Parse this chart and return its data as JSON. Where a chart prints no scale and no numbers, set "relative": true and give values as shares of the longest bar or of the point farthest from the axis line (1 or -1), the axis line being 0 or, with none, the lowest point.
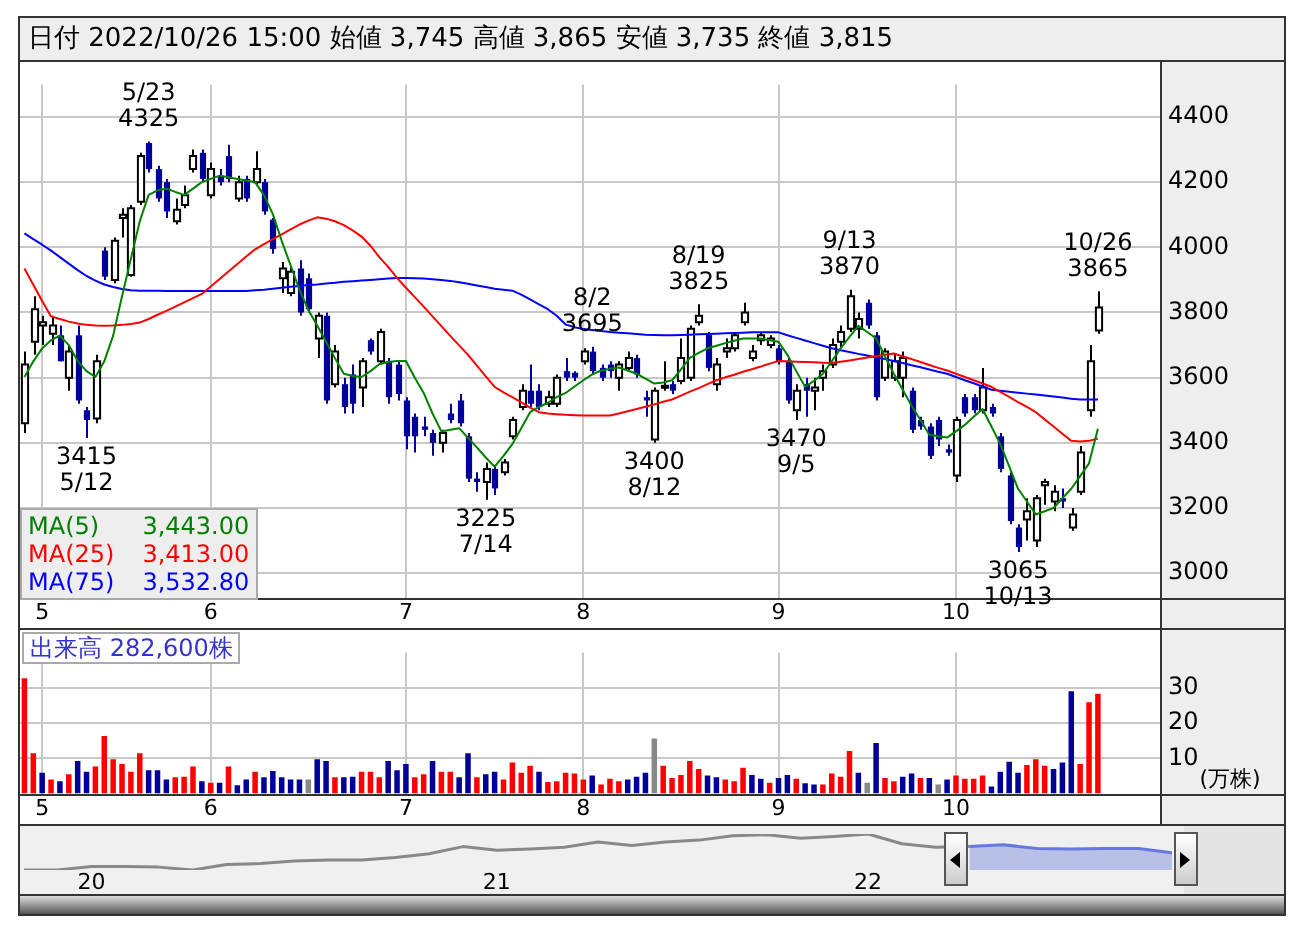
{
  "chart_data": [
    {
      "type": "candlestick",
      "title": "日付 2022/10/26 15:00 始値 3,745 高値 3,865 安値 3,735 終値 3,815",
      "categories": [
        null,
        null,
        "5",
        null,
        null,
        null,
        null,
        null,
        null,
        null,
        null,
        null,
        null,
        null,
        null,
        null,
        null,
        null,
        null,
        null,
        null,
        "6",
        null,
        null,
        null,
        null,
        null,
        null,
        null,
        null,
        null,
        null,
        null,
        null,
        null,
        null,
        null,
        null,
        null,
        null,
        null,
        null,
        null,
        "7",
        null,
        null,
        null,
        null,
        null,
        null,
        null,
        null,
        null,
        null,
        null,
        null,
        null,
        null,
        null,
        null,
        null,
        null,
        null,
        "8",
        null,
        null,
        null,
        null,
        null,
        null,
        null,
        null,
        null,
        null,
        null,
        null,
        null,
        null,
        null,
        null,
        null,
        null,
        null,
        null,
        null,
        "9",
        null,
        null,
        null,
        null,
        null,
        null,
        null,
        null,
        null,
        null,
        null,
        null,
        null,
        null,
        null,
        null,
        null,
        null,
        null,
        "10",
        null,
        null,
        null,
        null,
        null,
        null,
        null,
        null,
        null,
        null,
        null,
        null,
        null,
        null,
        null,
        null
      ],
      "ohlc": [
        [
          3460,
          3680,
          3430,
          3640
        ],
        [
          3710,
          3850,
          3670,
          3810
        ],
        [
          3760,
          3790,
          3700,
          3770
        ],
        [
          3735,
          3790,
          3700,
          3760
        ],
        [
          3730,
          3760,
          3650,
          3650
        ],
        [
          3600,
          3700,
          3560,
          3680
        ],
        [
          3730,
          3760,
          3520,
          3530
        ],
        [
          3500,
          3510,
          3415,
          3470
        ],
        [
          3475,
          3670,
          3460,
          3650
        ],
        [
          3990,
          4000,
          3900,
          3910
        ],
        [
          3900,
          4030,
          3890,
          4020
        ],
        [
          4090,
          4120,
          4030,
          4100
        ],
        [
          3915,
          4130,
          3910,
          4120
        ],
        [
          4140,
          4290,
          4130,
          4280
        ],
        [
          4320,
          4325,
          4230,
          4240
        ],
        [
          4240,
          4250,
          4140,
          4150
        ],
        [
          4200,
          4210,
          4090,
          4110
        ],
        [
          4080,
          4150,
          4070,
          4115
        ],
        [
          4130,
          4190,
          4120,
          4160
        ],
        [
          4240,
          4300,
          4230,
          4280
        ],
        [
          4290,
          4300,
          4200,
          4210
        ],
        [
          4160,
          4260,
          4150,
          4240
        ],
        [
          4220,
          4240,
          4190,
          4200
        ],
        [
          4280,
          4315,
          4200,
          4210
        ],
        [
          4150,
          4220,
          4140,
          4200
        ],
        [
          4210,
          4220,
          4140,
          4150
        ],
        [
          4200,
          4295,
          4190,
          4240
        ],
        [
          4200,
          4210,
          4100,
          4110
        ],
        [
          4085,
          4090,
          3980,
          3995
        ],
        [
          3905,
          3955,
          3860,
          3935
        ],
        [
          3860,
          3940,
          3850,
          3925
        ],
        [
          3935,
          3960,
          3790,
          3800
        ],
        [
          3905,
          3920,
          3800,
          3810
        ],
        [
          3720,
          3800,
          3660,
          3790
        ],
        [
          3790,
          3800,
          3520,
          3530
        ],
        [
          3580,
          3700,
          3570,
          3680
        ],
        [
          3580,
          3600,
          3490,
          3510
        ],
        [
          3610,
          3640,
          3490,
          3520
        ],
        [
          3570,
          3660,
          3510,
          3650
        ],
        [
          3715,
          3720,
          3670,
          3680
        ],
        [
          3650,
          3750,
          3640,
          3740
        ],
        [
          3650,
          3660,
          3520,
          3540
        ],
        [
          3640,
          3650,
          3530,
          3550
        ],
        [
          3530,
          3540,
          3380,
          3420
        ],
        [
          3480,
          3490,
          3370,
          3420
        ],
        [
          3450,
          3480,
          3420,
          3440
        ],
        [
          3430,
          3440,
          3360,
          3400
        ],
        [
          3400,
          3440,
          3370,
          3430
        ],
        [
          3490,
          3520,
          3460,
          3470
        ],
        [
          3530,
          3550,
          3450,
          3460
        ],
        [
          3420,
          3430,
          3280,
          3290
        ],
        [
          3290,
          3310,
          3250,
          3280
        ],
        [
          3280,
          3340,
          3225,
          3320
        ],
        [
          3320,
          3330,
          3240,
          3260
        ],
        [
          3310,
          3350,
          3300,
          3340
        ],
        [
          3420,
          3480,
          3410,
          3470
        ],
        [
          3510,
          3580,
          3500,
          3560
        ],
        [
          3560,
          3640,
          3510,
          3520
        ],
        [
          3560,
          3580,
          3500,
          3510
        ],
        [
          3520,
          3560,
          3510,
          3540
        ],
        [
          3520,
          3610,
          3510,
          3600
        ],
        [
          3620,
          3660,
          3590,
          3600
        ],
        [
          3615,
          3620,
          3590,
          3600
        ],
        [
          3650,
          3690,
          3640,
          3680
        ],
        [
          3680,
          3695,
          3610,
          3620
        ],
        [
          3630,
          3640,
          3590,
          3600
        ],
        [
          3640,
          3650,
          3600,
          3620
        ],
        [
          3600,
          3650,
          3560,
          3640
        ],
        [
          3630,
          3680,
          3620,
          3660
        ],
        [
          3660,
          3670,
          3600,
          3610
        ],
        [
          3540,
          3560,
          3480,
          3530
        ],
        [
          3410,
          3570,
          3400,
          3560
        ],
        [
          3570,
          3650,
          3560,
          3575
        ],
        [
          3580,
          3590,
          3550,
          3560
        ],
        [
          3590,
          3720,
          3580,
          3660
        ],
        [
          3600,
          3760,
          3590,
          3750
        ],
        [
          3770,
          3825,
          3760,
          3790
        ],
        [
          3735,
          3740,
          3620,
          3630
        ],
        [
          3580,
          3660,
          3560,
          3640
        ],
        [
          3680,
          3720,
          3660,
          3690
        ],
        [
          3690,
          3740,
          3680,
          3730
        ],
        [
          3770,
          3830,
          3760,
          3800
        ],
        [
          3660,
          3700,
          3650,
          3680
        ],
        [
          3715,
          3740,
          3700,
          3730
        ],
        [
          3700,
          3730,
          3690,
          3720
        ],
        [
          3690,
          3700,
          3640,
          3650
        ],
        [
          3650,
          3660,
          3520,
          3530
        ],
        [
          3500,
          3580,
          3470,
          3560
        ],
        [
          3580,
          3600,
          3480,
          3560
        ],
        [
          3560,
          3600,
          3500,
          3570
        ],
        [
          3600,
          3640,
          3560,
          3620
        ],
        [
          3640,
          3720,
          3630,
          3700
        ],
        [
          3710,
          3760,
          3690,
          3740
        ],
        [
          3750,
          3870,
          3740,
          3850
        ],
        [
          3750,
          3800,
          3720,
          3780
        ],
        [
          3830,
          3840,
          3750,
          3760
        ],
        [
          3730,
          3740,
          3530,
          3540
        ],
        [
          3600,
          3690,
          3590,
          3680
        ],
        [
          3600,
          3670,
          3590,
          3650
        ],
        [
          3600,
          3680,
          3540,
          3660
        ],
        [
          3560,
          3570,
          3430,
          3440
        ],
        [
          3470,
          3480,
          3440,
          3450
        ],
        [
          3450,
          3460,
          3350,
          3360
        ],
        [
          3470,
          3480,
          3390,
          3410
        ],
        [
          3380,
          3395,
          3360,
          3370
        ],
        [
          3300,
          3480,
          3280,
          3470
        ],
        [
          3540,
          3550,
          3480,
          3490
        ],
        [
          3540,
          3550,
          3490,
          3500
        ],
        [
          3500,
          3630,
          3490,
          3570
        ],
        [
          3510,
          3520,
          3480,
          3490
        ],
        [
          3420,
          3430,
          3310,
          3320
        ],
        [
          3300,
          3310,
          3150,
          3160
        ],
        [
          3140,
          3150,
          3065,
          3080
        ],
        [
          3165,
          3230,
          3100,
          3190
        ],
        [
          3100,
          3240,
          3080,
          3230
        ],
        [
          3270,
          3290,
          3210,
          3280
        ],
        [
          3220,
          3270,
          3190,
          3250
        ],
        [
          3230,
          3260,
          3200,
          3220
        ],
        [
          3140,
          3200,
          3130,
          3180
        ],
        [
          3250,
          3390,
          3240,
          3370
        ],
        [
          3500,
          3700,
          3480,
          3650
        ],
        [
          3745,
          3865,
          3735,
          3815
        ]
      ],
      "series": [
        {
          "name": "MA(5)",
          "type": "line",
          "color": "#008000",
          "values": [
            3602,
            3650,
            3690,
            3715,
            3729,
            3700,
            3651,
            3620,
            3602,
            3650,
            3729,
            3850,
            3965,
            4080,
            4161,
            4175,
            4180,
            4170,
            4161,
            4180,
            4200,
            4210,
            4220,
            4215,
            4210,
            4205,
            4200,
            4160,
            4102,
            4020,
            3945,
            3870,
            3808,
            3760,
            3710,
            3660,
            3612,
            3605,
            3602,
            3620,
            3641,
            3648,
            3651,
            3651,
            3600,
            3553,
            3490,
            3435,
            3440,
            3445,
            3415,
            3386,
            3355,
            3327,
            3360,
            3396,
            3445,
            3494,
            3510,
            3523,
            3540,
            3553,
            3573,
            3592,
            3610,
            3622,
            3627,
            3631,
            3622,
            3612,
            3597,
            3582,
            3585,
            3592,
            3625,
            3661,
            3676,
            3690,
            3698,
            3706,
            3713,
            3720,
            3720,
            3720,
            3715,
            3710,
            3670,
            3620,
            3572,
            3590,
            3612,
            3650,
            3690,
            3725,
            3759,
            3740,
            3720,
            3665,
            3612,
            3563,
            3514,
            3470,
            3425,
            3420,
            3416,
            3435,
            3455,
            3480,
            3504,
            3450,
            3396,
            3328,
            3259,
            3220,
            3180,
            3190,
            3200,
            3230,
            3259,
            3298,
            3337,
            3443
          ]
        },
        {
          "name": "MA(25)",
          "type": "line",
          "color": "#ff0000",
          "values": [
            3935,
            3885,
            3835,
            3788,
            3780,
            3772,
            3766,
            3762,
            3760,
            3759,
            3760,
            3762,
            3765,
            3769,
            3780,
            3793,
            3805,
            3818,
            3831,
            3844,
            3857,
            3880,
            3903,
            3926,
            3949,
            3972,
            3994,
            4010,
            4025,
            4040,
            4055,
            4070,
            4082,
            4092,
            4088,
            4080,
            4068,
            4052,
            4033,
            4005,
            3970,
            3940,
            3906,
            3876,
            3847,
            3818,
            3788,
            3758,
            3728,
            3699,
            3670,
            3637,
            3604,
            3572,
            3555,
            3540,
            3524,
            3508,
            3494,
            3490,
            3488,
            3486,
            3485,
            3484,
            3484,
            3484,
            3484,
            3490,
            3497,
            3504,
            3511,
            3518,
            3526,
            3533,
            3545,
            3557,
            3568,
            3580,
            3592,
            3601,
            3609,
            3618,
            3626,
            3634,
            3643,
            3651,
            3650,
            3649,
            3648,
            3647,
            3646,
            3645,
            3649,
            3653,
            3657,
            3662,
            3666,
            3670,
            3674,
            3665,
            3657,
            3648,
            3639,
            3630,
            3622,
            3612,
            3602,
            3592,
            3582,
            3572,
            3556,
            3541,
            3525,
            3510,
            3494,
            3472,
            3450,
            3428,
            3406,
            3404,
            3406,
            3413
          ]
        },
        {
          "name": "MA(75)",
          "type": "line",
          "color": "#0000ff",
          "values": [
            4043,
            4025,
            4008,
            3990,
            3970,
            3950,
            3930,
            3912,
            3898,
            3886,
            3878,
            3872,
            3868,
            3867,
            3867,
            3867,
            3866,
            3866,
            3866,
            3866,
            3866,
            3866,
            3866,
            3866,
            3866,
            3866,
            3868,
            3870,
            3873,
            3876,
            3879,
            3881,
            3884,
            3886,
            3889,
            3891,
            3894,
            3896,
            3898,
            3900,
            3902,
            3904,
            3906,
            3906,
            3905,
            3904,
            3902,
            3900,
            3897,
            3893,
            3888,
            3883,
            3878,
            3873,
            3870,
            3867,
            3855,
            3840,
            3825,
            3810,
            3790,
            3763,
            3755,
            3749,
            3746,
            3743,
            3740,
            3738,
            3736,
            3734,
            3732,
            3731,
            3730,
            3730,
            3731,
            3732,
            3733,
            3734,
            3735,
            3736,
            3737,
            3738,
            3739,
            3739,
            3739,
            3739,
            3730,
            3722,
            3714,
            3706,
            3698,
            3690,
            3684,
            3679,
            3673,
            3668,
            3662,
            3657,
            3651,
            3645,
            3638,
            3632,
            3625,
            3618,
            3612,
            3602,
            3592,
            3583,
            3573,
            3563,
            3560,
            3557,
            3554,
            3551,
            3548,
            3545,
            3542,
            3539,
            3535,
            3533,
            3533,
            3533
          ]
        }
      ],
      "annotations": [
        {
          "text": "5/23\n4325",
          "y": 4325
        },
        {
          "text": "3415\n5/12",
          "y": 3415
        },
        {
          "text": "3225\n7/14",
          "y": 3225
        },
        {
          "text": "8/2\n3695",
          "y": 3695
        },
        {
          "text": "3400\n8/12",
          "y": 3400
        },
        {
          "text": "8/19\n3825",
          "y": 3825
        },
        {
          "text": "3470\n9/5",
          "y": 3470
        },
        {
          "text": "9/13\n3870",
          "y": 3870
        },
        {
          "text": "3065\n10/13",
          "y": 3065
        },
        {
          "text": "10/26\n3865",
          "y": 3865
        },
        "3,443.00",
        "3,413.00",
        "3,532.80"
      ],
      "ylim": [
        2925,
        4500
      ],
      "yticks": [
        3000,
        3200,
        3400,
        3600,
        3800,
        4000,
        4200,
        4400
      ],
      "grid": true,
      "legend": "bottom left"
    },
    {
      "type": "bar",
      "title": "出来高 282,600株",
      "ylabel": "(万株)",
      "categories": [
        null,
        null,
        "5",
        null,
        null,
        null,
        null,
        null,
        null,
        null,
        null,
        null,
        null,
        null,
        null,
        null,
        null,
        null,
        null,
        null,
        null,
        "6",
        null,
        null,
        null,
        null,
        null,
        null,
        null,
        null,
        null,
        null,
        null,
        null,
        null,
        null,
        null,
        null,
        null,
        null,
        null,
        null,
        null,
        "7",
        null,
        null,
        null,
        null,
        null,
        null,
        null,
        null,
        null,
        null,
        null,
        null,
        null,
        null,
        null,
        null,
        null,
        null,
        null,
        "8",
        null,
        null,
        null,
        null,
        null,
        null,
        null,
        null,
        null,
        null,
        null,
        null,
        null,
        null,
        null,
        null,
        null,
        null,
        null,
        null,
        null,
        "9",
        null,
        null,
        null,
        null,
        null,
        null,
        null,
        null,
        null,
        null,
        null,
        null,
        null,
        null,
        null,
        null,
        null,
        null,
        null,
        "10",
        null,
        null,
        null,
        null,
        null,
        null,
        null,
        null,
        null,
        null,
        null,
        null,
        null,
        null,
        null,
        null
      ],
      "values": [
        32.7,
        11.4,
        5.9,
        4,
        3.5,
        5.5,
        9.2,
        6.2,
        7.7,
        16.3,
        9.7,
        8.4,
        6.2,
        11.4,
        6.6,
        6.6,
        4,
        4.6,
        4.8,
        7.7,
        3.5,
        3.1,
        3.1,
        7.7,
        2.4,
        4,
        6.2,
        4.6,
        6.4,
        4.6,
        4,
        4,
        4,
        9.7,
        9.2,
        4.6,
        4.6,
        4.8,
        6.2,
        6.2,
        4.6,
        9.2,
        6.6,
        8.4,
        4.6,
        5.5,
        9.2,
        6.2,
        6.2,
        4.6,
        11.4,
        4.6,
        5.5,
        6.2,
        4,
        8.8,
        5.9,
        7.9,
        6.2,
        3.3,
        3.5,
        5.9,
        5.7,
        4,
        5.1,
        2.6,
        4.2,
        3.5,
        4,
        4.8,
        5.9,
        15.6,
        7.9,
        4.4,
        5.3,
        9.2,
        7,
        5.1,
        4.6,
        4,
        3.5,
        7.3,
        5.3,
        4.2,
        3.1,
        4.4,
        5.3,
        4.2,
        2.9,
        2.6,
        2.6,
        5.7,
        4.8,
        12.1,
        5.9,
        3.1,
        14.3,
        4.4,
        3.5,
        4.8,
        5.7,
        4.4,
        4.4,
        2.6,
        4,
        5.1,
        4.2,
        4.2,
        5.1,
        2,
        6.2,
        9,
        5.9,
        8.1,
        9.7,
        7.9,
        7,
        8.8,
        29,
        8.4,
        25.9,
        28.26
      ],
      "colors": [
        "#ff0000",
        "#ff0000",
        "#000099",
        "#ff0000",
        "#000099",
        "#ff0000",
        "#000099",
        "#000099",
        "#ff0000",
        "#ff0000",
        "#ff0000",
        "#ff0000",
        "#ff0000",
        "#ff0000",
        "#000099",
        "#000099",
        "#000099",
        "#ff0000",
        "#ff0000",
        "#ff0000",
        "#000099",
        "#ff0000",
        "#000099",
        "#ff0000",
        "#000099",
        "#000099",
        "#ff0000",
        "#000099",
        "#000099",
        "#000099",
        "#000099",
        "#000099",
        "#888888",
        "#000099",
        "#000099",
        "#ff0000",
        "#000099",
        "#000099",
        "#ff0000",
        "#ff0000",
        "#ff0000",
        "#000099",
        "#000099",
        "#000099",
        "#ff0000",
        "#ff0000",
        "#000099",
        "#ff0000",
        "#ff0000",
        "#000099",
        "#000099",
        "#ff0000",
        "#000099",
        "#000099",
        "#ff0000",
        "#ff0000",
        "#ff0000",
        "#ff0000",
        "#000099",
        "#ff0000",
        "#ff0000",
        "#ff0000",
        "#ff0000",
        "#ff0000",
        "#000099",
        "#ff0000",
        "#ff0000",
        "#ff0000",
        "#000099",
        "#000099",
        "#000099",
        "#888888",
        "#ff0000",
        "#ff0000",
        "#ff0000",
        "#ff0000",
        "#ff0000",
        "#000099",
        "#000099",
        "#ff0000",
        "#ff0000",
        "#ff0000",
        "#000099",
        "#000099",
        "#ff0000",
        "#000099",
        "#000099",
        "#ff0000",
        "#000099",
        "#000099",
        "#ff0000",
        "#ff0000",
        "#ff0000",
        "#ff0000",
        "#000099",
        "#888888",
        "#000099",
        "#ff0000",
        "#ff0000",
        "#000099",
        "#000099",
        "#ff0000",
        "#000099",
        "#888888",
        "#000099",
        "#ff0000",
        "#ff0000",
        "#ff0000",
        "#ff0000",
        "#000099",
        "#000099",
        "#000099",
        "#000099",
        "#ff0000",
        "#ff0000",
        "#ff0000",
        "#000099",
        "#000099",
        "#000099",
        "#ff0000",
        "#ff0000",
        "#ff0000"
      ],
      "ylim": [
        0,
        40
      ],
      "yticks": [
        10,
        20,
        30
      ],
      "grid": true
    },
    {
      "type": "line",
      "relative": true,
      "categories": [
        null,
        null,
        "20",
        null,
        null,
        null,
        null,
        null,
        null,
        null,
        null,
        null,
        null,
        null,
        "21",
        null,
        null,
        null,
        null,
        null,
        null,
        null,
        null,
        null,
        null,
        "22",
        null,
        null,
        null,
        null,
        null,
        null,
        null,
        null,
        null
      ],
      "series": [
        {
          "type": "line",
          "color": "#888888",
          "values": [
            0,
            0,
            0.1,
            0.1,
            0.08,
            0,
            0.15,
            0.18,
            0.25,
            0.28,
            0.28,
            0.35,
            0.45,
            0.65,
            0.55,
            0.58,
            0.63,
            0.78,
            0.68,
            0.78,
            0.83,
            0.95,
            0.98,
            0.88,
            0.93,
            1,
            0.73,
            0.63,
            0.65,
            null,
            null,
            null,
            null,
            null,
            null
          ]
        },
        {
          "type": "area",
          "color": "#6677dd",
          "values": [
            null,
            null,
            null,
            null,
            null,
            null,
            null,
            null,
            null,
            null,
            null,
            null,
            null,
            null,
            null,
            null,
            null,
            null,
            null,
            null,
            null,
            null,
            null,
            null,
            null,
            null,
            null,
            null,
            0.65,
            0.7,
            0.6,
            0.58,
            0.6,
            0.6,
            0.48
          ]
        }
      ]
    }
  ]
}
